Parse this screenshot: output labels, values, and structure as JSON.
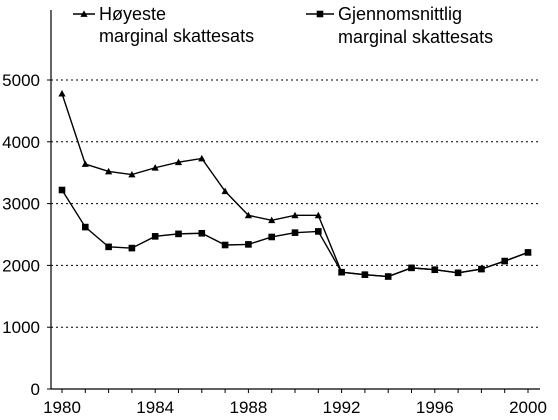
{
  "chart_data": {
    "type": "line",
    "title": "",
    "xlabel": "",
    "ylabel": "",
    "xlim": [
      1979.5,
      2000
    ],
    "ylim": [
      0,
      6000
    ],
    "x_ticks": [
      1980,
      1984,
      1988,
      1992,
      1996,
      2000
    ],
    "y_ticks": [
      0,
      1000,
      2000,
      3000,
      4000,
      5000
    ],
    "grid": "horizontal-dotted",
    "legend_position": "top",
    "series": [
      {
        "name": "Høyeste marginal skattesats",
        "legend_lines": [
          "Høyeste",
          "marginal skattesats"
        ],
        "marker": "triangle",
        "x": [
          1980,
          1981,
          1982,
          1983,
          1984,
          1985,
          1986,
          1987,
          1988,
          1989,
          1990,
          1991,
          1992,
          1993,
          1994,
          1995,
          1996,
          1997,
          1998,
          1999,
          2000
        ],
        "values": [
          4780,
          3640,
          3520,
          3470,
          3580,
          3670,
          3730,
          3200,
          2810,
          2730,
          2810,
          2810,
          1890,
          1850,
          1820,
          1960,
          1930,
          1880,
          1940,
          2070,
          2210
        ]
      },
      {
        "name": "Gjennomsnittlig marginal skattesats",
        "legend_lines": [
          "Gjennomsnittlig",
          "marginal skattesats"
        ],
        "marker": "square",
        "x": [
          1980,
          1981,
          1982,
          1983,
          1984,
          1985,
          1986,
          1987,
          1988,
          1989,
          1990,
          1991,
          1992,
          1993,
          1994,
          1995,
          1996,
          1997,
          1998,
          1999,
          2000
        ],
        "values": [
          3220,
          2620,
          2300,
          2280,
          2470,
          2510,
          2520,
          2330,
          2340,
          2460,
          2530,
          2550,
          1890,
          1850,
          1820,
          1960,
          1930,
          1880,
          1940,
          2070,
          2210
        ]
      }
    ]
  }
}
